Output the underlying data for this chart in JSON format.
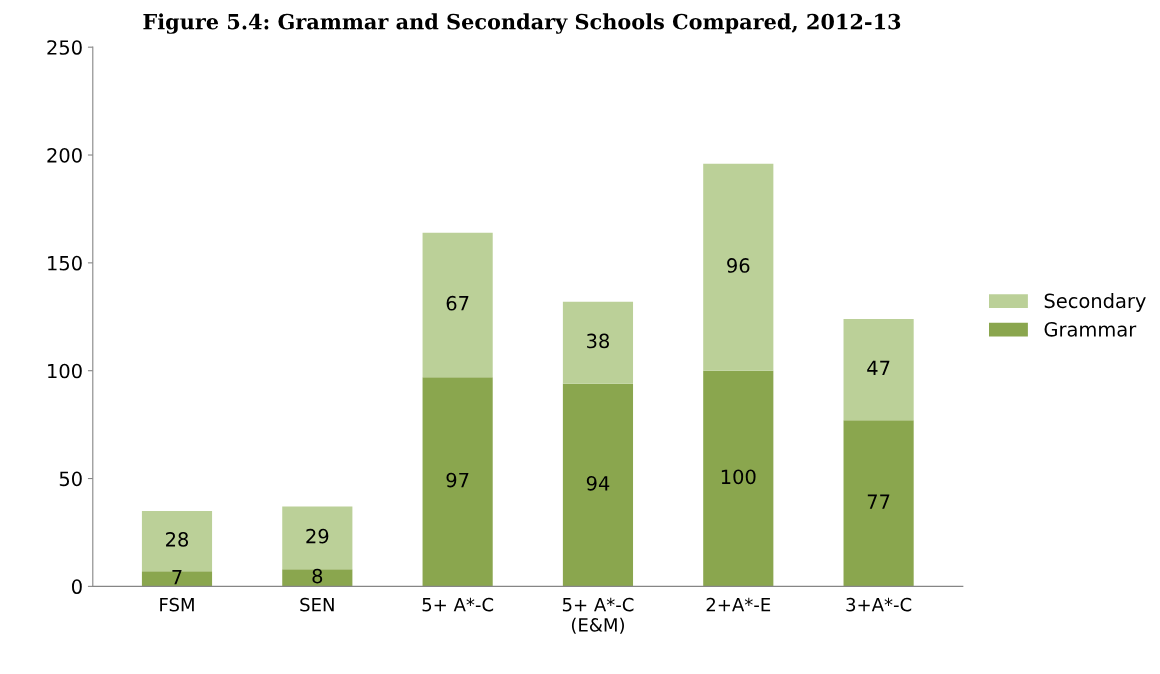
{
  "chart_data": {
    "type": "bar",
    "title": "Figure 5.4: Grammar and Secondary Schools Compared, 2012-13",
    "categories": [
      "FSM",
      "SEN",
      "5+ A*-C",
      "5+ A*-C\n(E&M)",
      "2+A*-E",
      "3+A*-C"
    ],
    "stacked": true,
    "series": [
      {
        "name": "Grammar",
        "color": "#8aa64e",
        "values": [
          7,
          8,
          97,
          94,
          100,
          77
        ]
      },
      {
        "name": "Secondary",
        "color": "#bbd098",
        "values": [
          28,
          29,
          67,
          38,
          96,
          47
        ]
      }
    ],
    "ylim": [
      0,
      250
    ],
    "yticks": [
      0,
      50,
      100,
      150,
      200,
      250
    ],
    "data_labels": true,
    "grid": false,
    "legend": "right"
  }
}
